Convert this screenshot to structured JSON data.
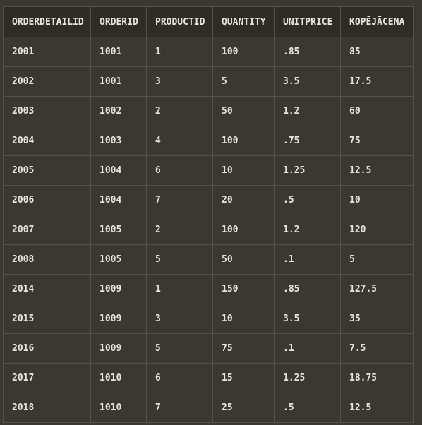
{
  "table": {
    "columns": [
      "ORDERDETAILID",
      "ORDERID",
      "PRODUCTID",
      "QUANTITY",
      "UNITPRICE",
      "KOPĒJĀCENA"
    ],
    "rows": [
      [
        "2001",
        "1001",
        "1",
        "100",
        ".85",
        "85"
      ],
      [
        "2002",
        "1001",
        "3",
        "5",
        "3.5",
        "17.5"
      ],
      [
        "2003",
        "1002",
        "2",
        "50",
        "1.2",
        "60"
      ],
      [
        "2004",
        "1003",
        "4",
        "100",
        ".75",
        "75"
      ],
      [
        "2005",
        "1004",
        "6",
        "10",
        "1.25",
        "12.5"
      ],
      [
        "2006",
        "1004",
        "7",
        "20",
        ".5",
        "10"
      ],
      [
        "2007",
        "1005",
        "2",
        "100",
        "1.2",
        "120"
      ],
      [
        "2008",
        "1005",
        "5",
        "50",
        ".1",
        "5"
      ],
      [
        "2014",
        "1009",
        "1",
        "150",
        ".85",
        "127.5"
      ],
      [
        "2015",
        "1009",
        "3",
        "10",
        "3.5",
        "35"
      ],
      [
        "2016",
        "1009",
        "5",
        "75",
        ".1",
        "7.5"
      ],
      [
        "2017",
        "1010",
        "6",
        "15",
        "1.25",
        "18.75"
      ],
      [
        "2018",
        "1010",
        "7",
        "25",
        ".5",
        "12.5"
      ]
    ]
  }
}
